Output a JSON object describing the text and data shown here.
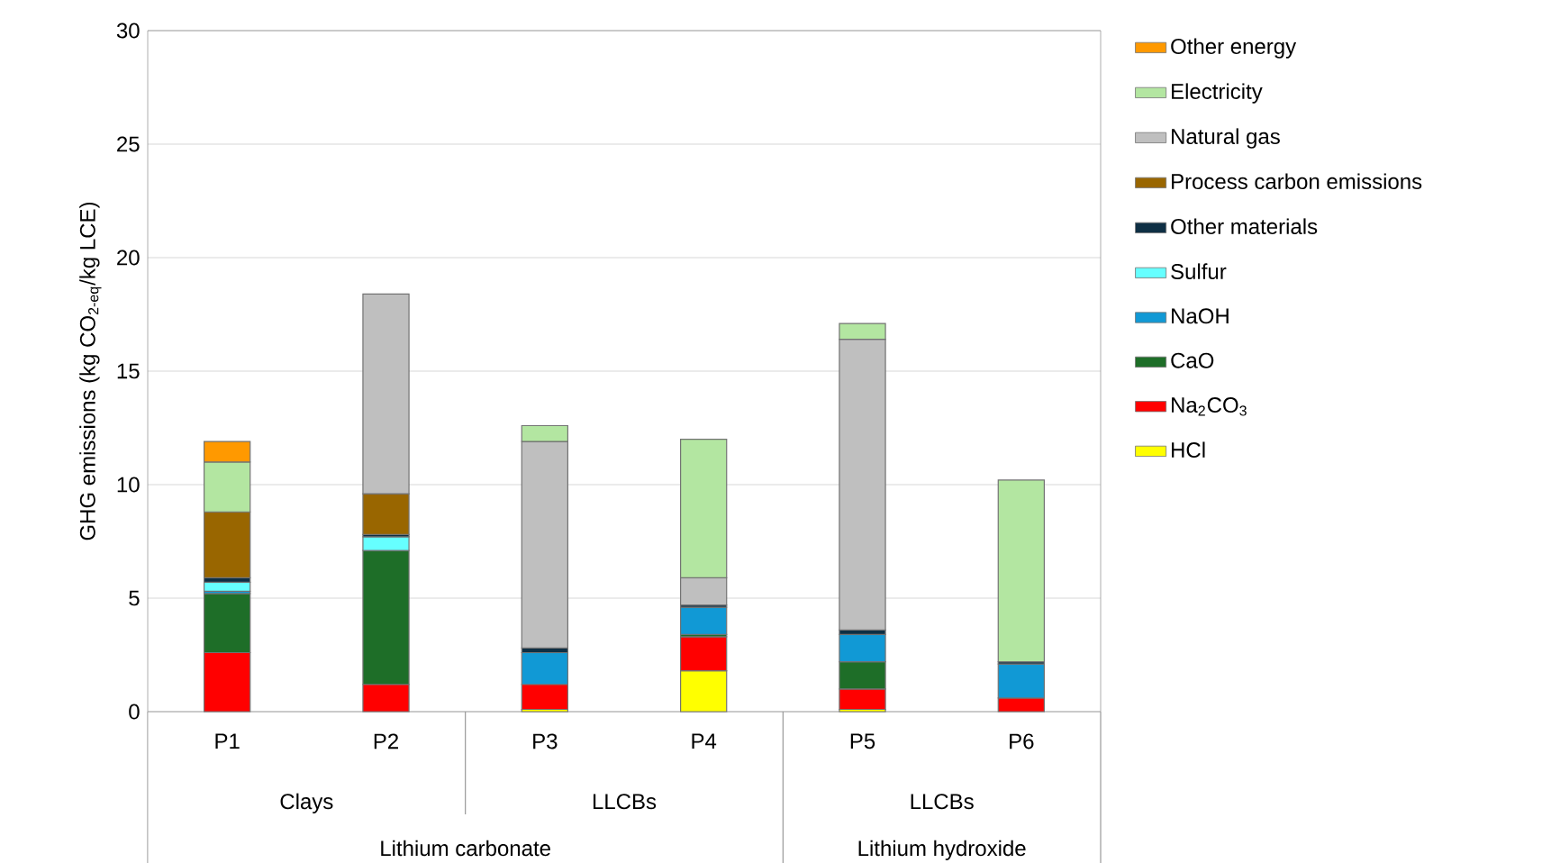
{
  "chart_data": {
    "type": "bar",
    "stacked": true,
    "ylabel": "GHG emissions (kg CO$_{2-eq}$/kg LCE)",
    "categories": [
      "P1",
      "P2",
      "P3",
      "P4",
      "P5",
      "P6"
    ],
    "annotations": [
      "Clays",
      "LLCBs",
      "LLCBs",
      "Lithium carbonate",
      "Lithium hydroxide"
    ],
    "ylim": [
      0,
      30
    ],
    "yticks": [
      0,
      5,
      10,
      15,
      20,
      25,
      30
    ],
    "grid": "y",
    "legend": "right",
    "series": [
      {
        "name": "HCl",
        "color": "#ffff00",
        "values": [
          null,
          null,
          0.1,
          1.8,
          0.1,
          null
        ]
      },
      {
        "name": "Na$_{2}$CO$_{3}$",
        "color": "#ff0000",
        "values": [
          2.6,
          1.2,
          1.1,
          1.5,
          0.9,
          0.6
        ]
      },
      {
        "name": "CaO",
        "color": "#1e6e28",
        "values": [
          2.6,
          5.9,
          null,
          0.1,
          1.2,
          null
        ]
      },
      {
        "name": "NaOH",
        "color": "#1199d5",
        "values": [
          0.1,
          null,
          1.4,
          1.2,
          1.2,
          1.5
        ]
      },
      {
        "name": "Sulfur",
        "color": "#66ffff",
        "values": [
          0.4,
          0.6,
          null,
          null,
          null,
          null
        ]
      },
      {
        "name": "Other materials",
        "color": "#0e2f44",
        "values": [
          0.2,
          0.1,
          0.2,
          0.1,
          0.2,
          0.1
        ]
      },
      {
        "name": "Process carbon emissions",
        "color": "#996600",
        "values": [
          2.9,
          1.8,
          null,
          null,
          null,
          null
        ]
      },
      {
        "name": "Natural gas",
        "color": "#bfbfbf",
        "values": [
          null,
          8.8,
          9.1,
          1.2,
          12.8,
          null
        ]
      },
      {
        "name": "Electricity",
        "color": "#b3e6a1",
        "values": [
          2.2,
          null,
          0.7,
          6.1,
          0.7,
          8.0
        ]
      },
      {
        "name": "Other energy",
        "color": "#ff9900",
        "values": [
          0.9,
          null,
          null,
          null,
          null,
          null
        ]
      }
    ]
  }
}
